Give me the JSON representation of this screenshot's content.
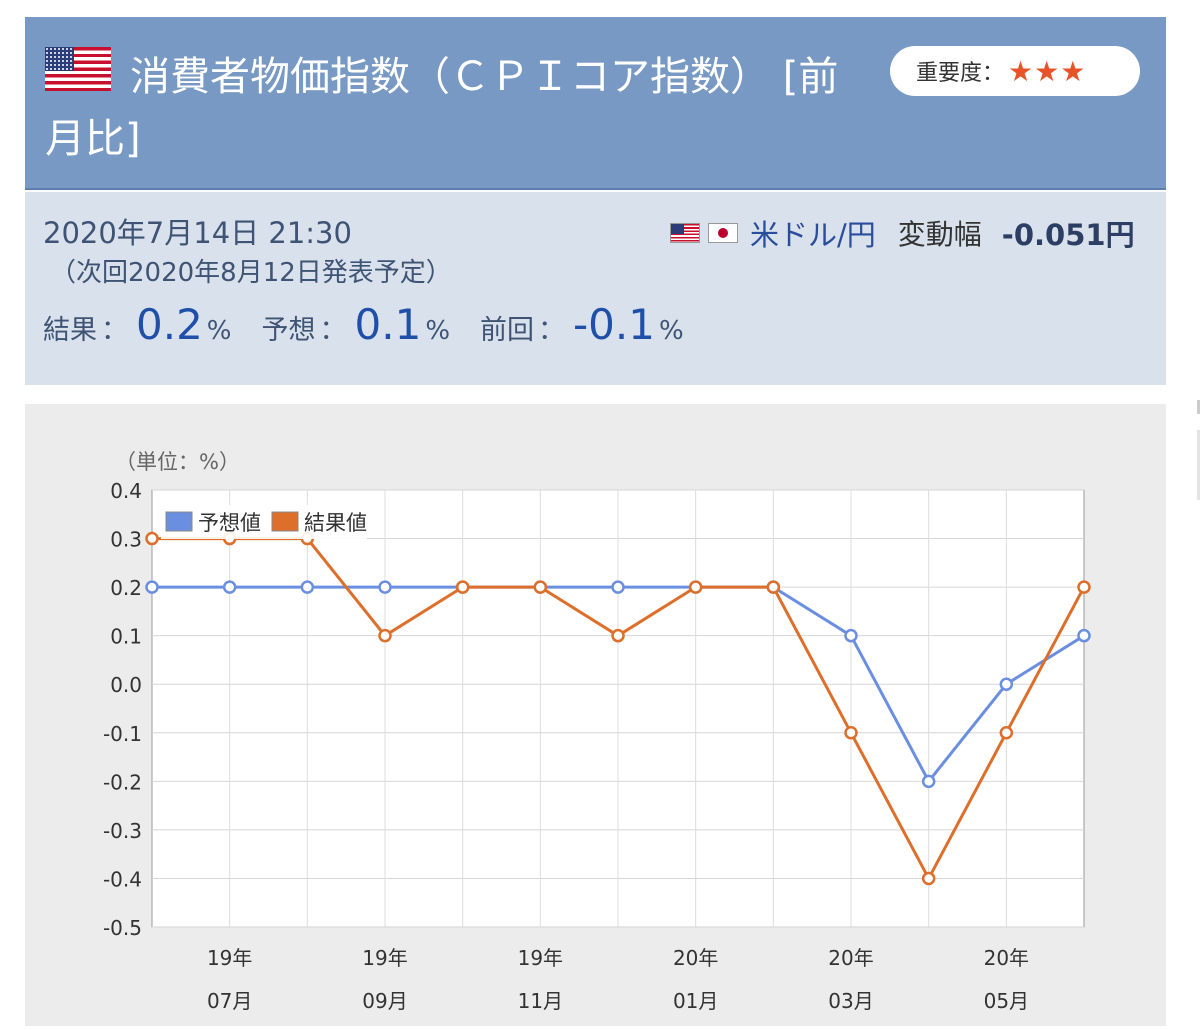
{
  "header": {
    "title": "消費者物価指数（ＣＰＩコア指数） [前月比]",
    "importance_label": "重要度：",
    "importance_stars": "★★★"
  },
  "info": {
    "datetime": "2020年7月14日 21:30",
    "next_release": "（次回2020年8月12日発表予定）",
    "pair": "米ドル/円",
    "change_label": "変動幅",
    "change_value": "-0.051円",
    "result_label": "結果",
    "result_value": "0.2",
    "forecast_label": "予想",
    "forecast_value": "0.1",
    "previous_label": "前回",
    "previous_value": "-0.1",
    "colon": "：",
    "unit": "%"
  },
  "colors": {
    "forecast": "#6b8fe0",
    "result": "#dd6f2b",
    "header_bg": "#7899c3",
    "info_bg": "#d9e2ec",
    "accent_text": "#1f4fa8"
  },
  "icons": [
    "us-flag-icon",
    "jp-flag-icon",
    "star-icon"
  ],
  "chart_data": {
    "type": "line",
    "unit_label": "（単位：%）",
    "ylim": [
      -0.5,
      0.4
    ],
    "yticks": [
      "0.4",
      "0.3",
      "0.2",
      "0.1",
      "0.0",
      "-0.1",
      "-0.2",
      "-0.3",
      "-0.4",
      "-0.5"
    ],
    "x_labels": [
      {
        "year": "19年",
        "month": "07月"
      },
      {
        "year": "19年",
        "month": "09月"
      },
      {
        "year": "19年",
        "month": "11月"
      },
      {
        "year": "20年",
        "month": "01月"
      },
      {
        "year": "20年",
        "month": "03月"
      },
      {
        "year": "20年",
        "month": "05月"
      }
    ],
    "grid": true,
    "legend_position": "top-left",
    "series": [
      {
        "name": "予想値",
        "color": "#6b8fe0",
        "values": [
          0.2,
          0.2,
          0.2,
          0.2,
          0.2,
          0.2,
          0.2,
          0.2,
          0.2,
          0.1,
          -0.2,
          0.0,
          0.1
        ]
      },
      {
        "name": "結果値",
        "color": "#dd6f2b",
        "values": [
          0.3,
          0.3,
          0.3,
          0.1,
          0.2,
          0.2,
          0.1,
          0.2,
          0.2,
          -0.1,
          -0.4,
          -0.1,
          0.2
        ]
      }
    ]
  }
}
